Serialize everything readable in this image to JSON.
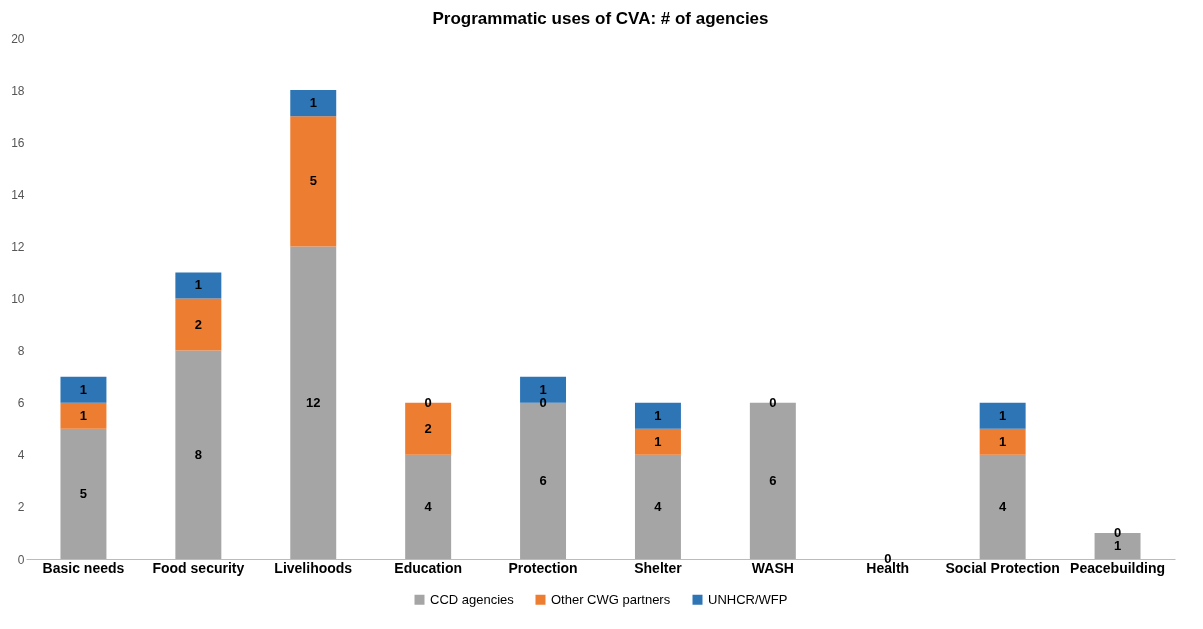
{
  "chart_data": {
    "type": "bar",
    "title": "Programmatic uses of CVA: # of agencies",
    "stacked": true,
    "legend": "bottom",
    "grid": false,
    "categories": [
      "Basic needs",
      "Food security",
      "Livelihoods",
      "Education",
      "Protection",
      "Shelter",
      "WASH",
      "Health",
      "Social Protection",
      "Peacebuilding"
    ],
    "series": [
      {
        "name": "CCD agencies",
        "color": "#a5a5a5",
        "values": [
          5,
          8,
          12,
          4,
          6,
          4,
          6,
          0,
          4,
          1
        ],
        "value_labels": [
          "5",
          "8",
          "12",
          "4",
          "6",
          "4",
          "6",
          "0",
          "4",
          "1"
        ]
      },
      {
        "name": "Other CWG partners",
        "color": "#ed7d31",
        "values": [
          1,
          2,
          5,
          2,
          0,
          1,
          0,
          0,
          1,
          0
        ],
        "value_labels": [
          "1",
          "2",
          "5",
          "2",
          "0",
          "1",
          "0",
          null,
          "1",
          "0"
        ]
      },
      {
        "name": "UNHCR/WFP",
        "color": "#2e75b6",
        "values": [
          1,
          1,
          1,
          0,
          1,
          1,
          0,
          0,
          1,
          0
        ],
        "value_labels": [
          "1",
          "1",
          "1",
          "0",
          "1",
          "1",
          null,
          null,
          "1",
          null
        ]
      }
    ],
    "ylim": [
      0,
      20
    ],
    "yticks": [
      0,
      2,
      4,
      6,
      8,
      10,
      12,
      14,
      16,
      18,
      20
    ]
  }
}
